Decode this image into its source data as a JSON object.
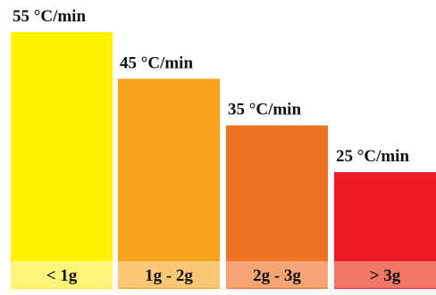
{
  "chart_data": {
    "type": "bar",
    "categories": [
      "< 1g",
      "1g - 2g",
      "2g - 3g",
      "> 3g"
    ],
    "values": [
      55,
      45,
      35,
      25
    ],
    "value_labels": [
      "55 °C/min",
      "45 °C/min",
      "35 °C/min",
      "25 °C/min"
    ],
    "title": "",
    "xlabel": "",
    "ylabel": "",
    "ylim": [
      0,
      55
    ],
    "grid": false,
    "legend": "none",
    "colors": [
      "#FFF200",
      "#F7A21B",
      "#F07323",
      "#ED1C24"
    ],
    "label_band_colors": [
      "#FFF57A",
      "#F9C877",
      "#F5A474",
      "#F27769"
    ]
  }
}
